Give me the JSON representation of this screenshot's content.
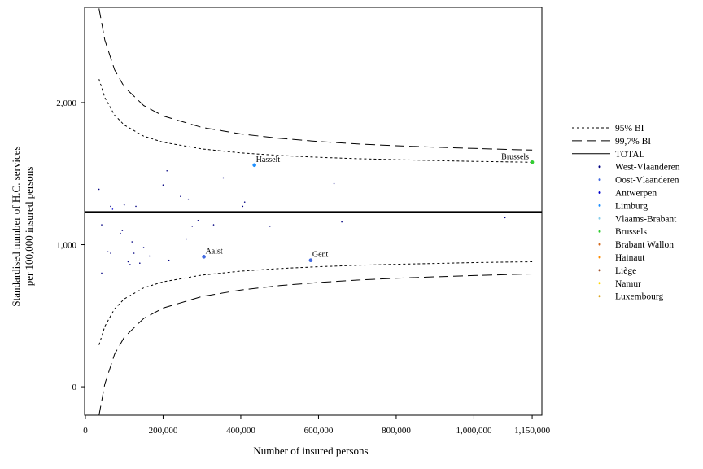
{
  "chart_data": {
    "type": "scatter",
    "xlabel": "Number of insured persons",
    "ylabel": [
      "Standardised number of H.C. services",
      "per 100,000 insured persons"
    ],
    "xlim": [
      -2000,
      1175000
    ],
    "ylim": [
      -200,
      2670
    ],
    "x_ticks": [
      0,
      200000,
      400000,
      600000,
      800000,
      1000000,
      1150000
    ],
    "x_tick_labels": [
      "0",
      "200,000",
      "400,000",
      "600,000",
      "800,000",
      "1,000,000",
      "1,150,000"
    ],
    "y_ticks": [
      0,
      1000,
      2000
    ],
    "y_tick_labels": [
      "0",
      "1,000",
      "2,000"
    ],
    "total_line": 1230,
    "grid": false,
    "legend_position": "right",
    "legend": [
      {
        "label": "95% BI",
        "kind": "short-dash"
      },
      {
        "label": "99,7% BI",
        "kind": "long-dash"
      },
      {
        "label": "TOTAL",
        "kind": "solid"
      },
      {
        "label": "West-Vlaanderen",
        "color": "#000080"
      },
      {
        "label": "Oost-Vlaanderen",
        "color": "#4169E1"
      },
      {
        "label": "Antwerpen",
        "color": "#0000CD"
      },
      {
        "label": "Limburg",
        "color": "#1E90FF"
      },
      {
        "label": "Vlaams-Brabant",
        "color": "#87CEEB"
      },
      {
        "label": "Brussels",
        "color": "#32CD32"
      },
      {
        "label": "Brabant Wallon",
        "color": "#D2691E"
      },
      {
        "label": "Hainaut",
        "color": "#FF8C00"
      },
      {
        "label": "Liège",
        "color": "#A0522D"
      },
      {
        "label": "Namur",
        "color": "#FFD700"
      },
      {
        "label": "Luxembourg",
        "color": "#DAA520"
      }
    ],
    "bounds": {
      "x": [
        35000,
        50000,
        75000,
        100000,
        150000,
        200000,
        300000,
        400000,
        500000,
        600000,
        700000,
        800000,
        900000,
        1000000,
        1100000,
        1150000
      ],
      "upper_997": [
        2662,
        2441,
        2231,
        2111,
        1979,
        1906,
        1825,
        1779,
        1748,
        1726,
        1709,
        1696,
        1686,
        1677,
        1669,
        1666
      ],
      "upper_95": [
        2165,
        2035,
        1912,
        1842,
        1764,
        1721,
        1674,
        1646,
        1628,
        1615,
        1605,
        1598,
        1592,
        1586,
        1582,
        1580
      ],
      "lower_95": [
        295,
        425,
        548,
        618,
        696,
        739,
        786,
        814,
        832,
        845,
        855,
        862,
        868,
        874,
        878,
        880
      ],
      "lower_997": [
        -202,
        19,
        229,
        349,
        481,
        554,
        635,
        681,
        712,
        734,
        751,
        764,
        774,
        783,
        791,
        794
      ]
    },
    "points": [
      {
        "x": 435000,
        "y": 1560,
        "color": "#1E90FF",
        "label": "Hasselt"
      },
      {
        "x": 1150000,
        "y": 1580,
        "color": "#32CD32",
        "label": "Brussels"
      },
      {
        "x": 305000,
        "y": 915,
        "color": "#4169E1",
        "label": "Aalst"
      },
      {
        "x": 580000,
        "y": 890,
        "color": "#4169E1",
        "label": "Gent"
      },
      {
        "x": 35000,
        "y": 1390,
        "color": "#000080"
      },
      {
        "x": 65000,
        "y": 1270,
        "color": "#000080"
      },
      {
        "x": 70000,
        "y": 1250,
        "color": "#0000CD"
      },
      {
        "x": 100000,
        "y": 1280,
        "color": "#000080"
      },
      {
        "x": 130000,
        "y": 1270,
        "color": "#000080"
      },
      {
        "x": 200000,
        "y": 1420,
        "color": "#000080"
      },
      {
        "x": 210000,
        "y": 1520,
        "color": "#000080"
      },
      {
        "x": 245000,
        "y": 1340,
        "color": "#000080"
      },
      {
        "x": 265000,
        "y": 1320,
        "color": "#000080"
      },
      {
        "x": 355000,
        "y": 1470,
        "color": "#000080"
      },
      {
        "x": 410000,
        "y": 1300,
        "color": "#000080"
      },
      {
        "x": 405000,
        "y": 1270,
        "color": "#000080"
      },
      {
        "x": 640000,
        "y": 1430,
        "color": "#000080"
      },
      {
        "x": 42000,
        "y": 1140,
        "color": "#000080"
      },
      {
        "x": 42000,
        "y": 800,
        "color": "#000080"
      },
      {
        "x": 58000,
        "y": 950,
        "color": "#000080"
      },
      {
        "x": 65000,
        "y": 940,
        "color": "#000080"
      },
      {
        "x": 90000,
        "y": 1080,
        "color": "#000080"
      },
      {
        "x": 95000,
        "y": 1100,
        "color": "#000080"
      },
      {
        "x": 110000,
        "y": 880,
        "color": "#000080"
      },
      {
        "x": 115000,
        "y": 860,
        "color": "#000080"
      },
      {
        "x": 120000,
        "y": 1020,
        "color": "#000080"
      },
      {
        "x": 125000,
        "y": 940,
        "color": "#000080"
      },
      {
        "x": 140000,
        "y": 870,
        "color": "#000080"
      },
      {
        "x": 150000,
        "y": 980,
        "color": "#000080"
      },
      {
        "x": 165000,
        "y": 920,
        "color": "#000080"
      },
      {
        "x": 215000,
        "y": 890,
        "color": "#000080"
      },
      {
        "x": 260000,
        "y": 1040,
        "color": "#000080"
      },
      {
        "x": 275000,
        "y": 1130,
        "color": "#000080"
      },
      {
        "x": 290000,
        "y": 1170,
        "color": "#000080"
      },
      {
        "x": 330000,
        "y": 1140,
        "color": "#000080"
      },
      {
        "x": 475000,
        "y": 1130,
        "color": "#000080"
      },
      {
        "x": 660000,
        "y": 1160,
        "color": "#000080"
      },
      {
        "x": 1080000,
        "y": 1190,
        "color": "#000080"
      }
    ]
  }
}
